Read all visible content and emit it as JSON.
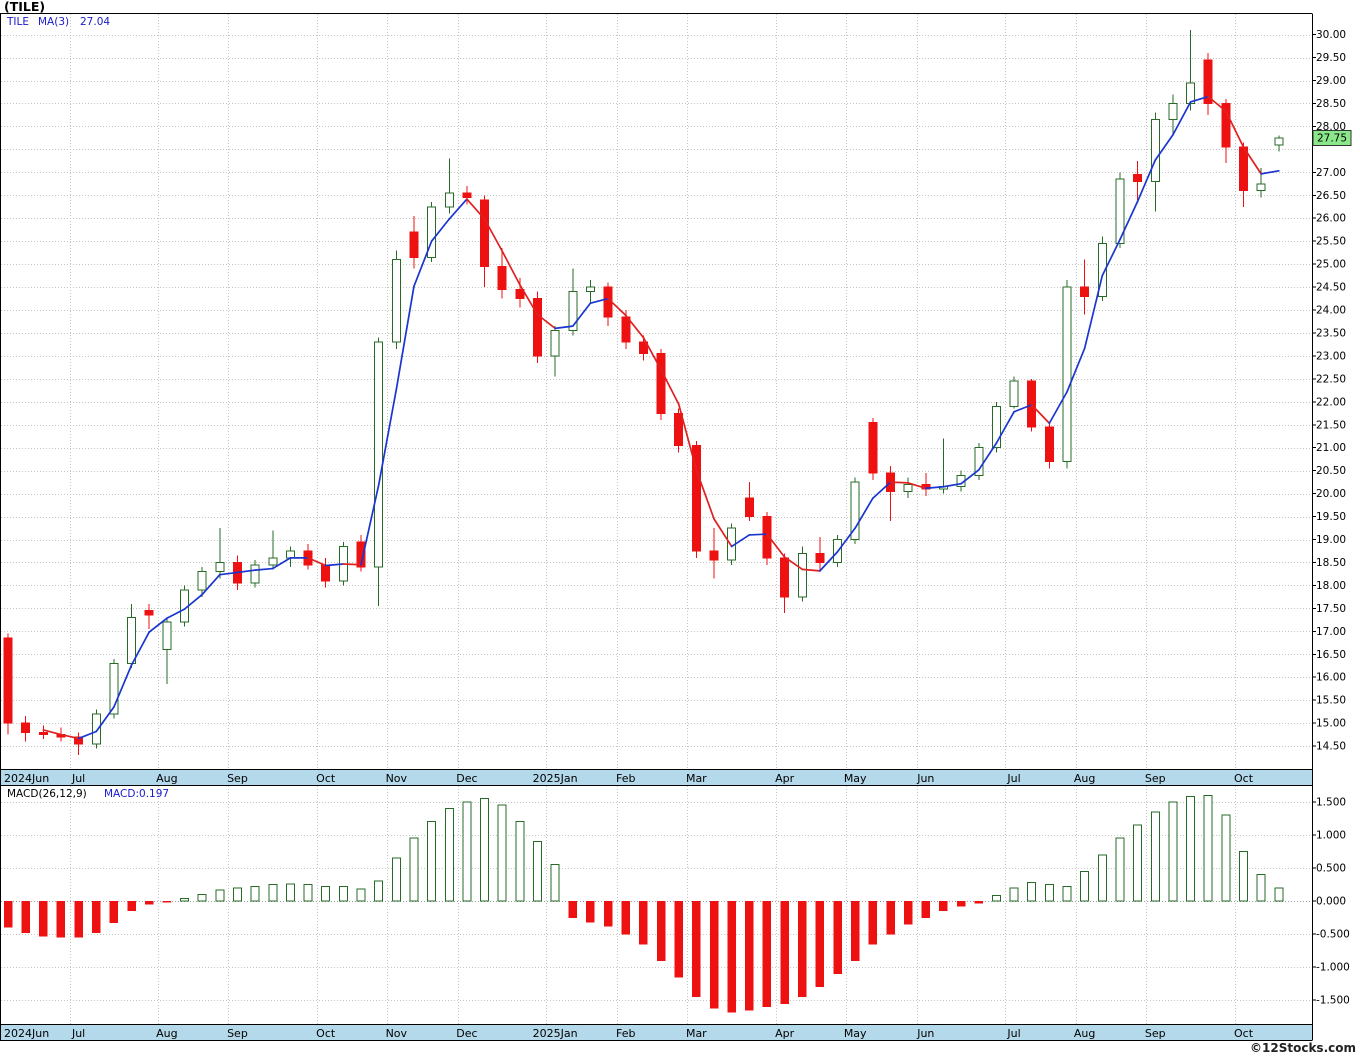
{
  "title": "(TILE)",
  "price_panel": {
    "legend_symbol": "TILE",
    "legend_ma_label": "MA(3)",
    "legend_ma_value": "27.04",
    "last_price_tag": "27.75",
    "axis_ticks": [
      "30.00",
      "29.50",
      "29.00",
      "28.50",
      "28.00",
      "27.00",
      "26.50",
      "26.00",
      "25.50",
      "25.00",
      "24.50",
      "24.00",
      "23.50",
      "23.00",
      "22.50",
      "22.00",
      "21.50",
      "21.00",
      "20.50",
      "20.00",
      "19.50",
      "19.00",
      "18.50",
      "18.00",
      "17.50",
      "17.00",
      "16.50",
      "16.00",
      "15.50",
      "15.00",
      "14.50"
    ]
  },
  "macd_panel": {
    "legend_label": "MACD(26,12,9)",
    "legend_value": "MACD:0.197",
    "axis_ticks": [
      "1.500",
      "1.000",
      "0.500",
      "0.000",
      "-0.500",
      "-1.000",
      "-1.500"
    ]
  },
  "x_axis": {
    "months": [
      {
        "label": "2024Jun",
        "index": 0
      },
      {
        "label": "Jul",
        "index": 4
      },
      {
        "label": "Aug",
        "index": 9
      },
      {
        "label": "Sep",
        "index": 13
      },
      {
        "label": "Oct",
        "index": 18
      },
      {
        "label": "Nov",
        "index": 22
      },
      {
        "label": "Dec",
        "index": 26
      },
      {
        "label": "2025Jan",
        "index": 31
      },
      {
        "label": "Feb",
        "index": 35
      },
      {
        "label": "Mar",
        "index": 39
      },
      {
        "label": "Apr",
        "index": 44
      },
      {
        "label": "May",
        "index": 48
      },
      {
        "label": "Jun",
        "index": 52
      },
      {
        "label": "Jul",
        "index": 57
      },
      {
        "label": "Aug",
        "index": 61
      },
      {
        "label": "Sep",
        "index": 65
      },
      {
        "label": "Oct",
        "index": 70
      }
    ]
  },
  "footer": "©12Stocks.com",
  "colors": {
    "up": "#276b27",
    "down": "#ee1111",
    "up_fill": "#ffffff",
    "ma_rising": "#1a35d0",
    "ma_falling": "#e02020",
    "grid": "#c4c4c4",
    "band": "#b4d9ea",
    "tag_bg": "#8ae88a",
    "frame": "#000000"
  },
  "chart_data": [
    {
      "type": "candlestick",
      "symbol": "TILE",
      "interval": "weekly",
      "ma_period": 3,
      "ma_last": 27.04,
      "last_close": 27.75,
      "ylim": [
        14.0,
        30.45
      ],
      "candles": [
        {
          "d": "2024-06-03",
          "o": 16.85,
          "h": 16.95,
          "l": 14.75,
          "c": 15.0
        },
        {
          "d": "2024-06-10",
          "o": 15.0,
          "h": 15.15,
          "l": 14.6,
          "c": 14.8
        },
        {
          "d": "2024-06-17",
          "o": 14.8,
          "h": 14.95,
          "l": 14.65,
          "c": 14.75
        },
        {
          "d": "2024-06-24",
          "o": 14.75,
          "h": 14.9,
          "l": 14.6,
          "c": 14.7
        },
        {
          "d": "2024-07-01",
          "o": 14.7,
          "h": 14.8,
          "l": 14.3,
          "c": 14.55
        },
        {
          "d": "2024-07-08",
          "o": 14.55,
          "h": 15.3,
          "l": 14.45,
          "c": 15.2
        },
        {
          "d": "2024-07-15",
          "o": 15.2,
          "h": 16.4,
          "l": 15.1,
          "c": 16.3
        },
        {
          "d": "2024-07-22",
          "o": 16.3,
          "h": 17.6,
          "l": 16.2,
          "c": 17.3
        },
        {
          "d": "2024-07-29",
          "o": 17.45,
          "h": 17.6,
          "l": 17.05,
          "c": 17.35
        },
        {
          "d": "2024-08-05",
          "o": 16.6,
          "h": 17.3,
          "l": 15.85,
          "c": 17.2
        },
        {
          "d": "2024-08-12",
          "o": 17.2,
          "h": 18.0,
          "l": 17.1,
          "c": 17.9
        },
        {
          "d": "2024-08-19",
          "o": 17.9,
          "h": 18.4,
          "l": 17.75,
          "c": 18.3
        },
        {
          "d": "2024-08-26",
          "o": 18.3,
          "h": 19.25,
          "l": 18.15,
          "c": 18.5
        },
        {
          "d": "2024-09-02",
          "o": 18.5,
          "h": 18.65,
          "l": 17.9,
          "c": 18.05
        },
        {
          "d": "2024-09-09",
          "o": 18.05,
          "h": 18.55,
          "l": 17.95,
          "c": 18.45
        },
        {
          "d": "2024-09-16",
          "o": 18.45,
          "h": 19.2,
          "l": 18.35,
          "c": 18.6
        },
        {
          "d": "2024-09-23",
          "o": 18.6,
          "h": 18.85,
          "l": 18.4,
          "c": 18.75
        },
        {
          "d": "2024-09-30",
          "o": 18.75,
          "h": 18.9,
          "l": 18.35,
          "c": 18.45
        },
        {
          "d": "2024-10-07",
          "o": 18.45,
          "h": 18.6,
          "l": 17.95,
          "c": 18.1
        },
        {
          "d": "2024-10-14",
          "o": 18.1,
          "h": 18.95,
          "l": 18.0,
          "c": 18.85
        },
        {
          "d": "2024-10-21",
          "o": 18.95,
          "h": 19.1,
          "l": 18.3,
          "c": 18.4
        },
        {
          "d": "2024-10-28",
          "o": 18.4,
          "h": 23.4,
          "l": 17.55,
          "c": 23.3
        },
        {
          "d": "2024-11-04",
          "o": 23.3,
          "h": 25.3,
          "l": 23.15,
          "c": 25.1
        },
        {
          "d": "2024-11-11",
          "o": 25.7,
          "h": 26.05,
          "l": 24.9,
          "c": 25.15
        },
        {
          "d": "2024-11-18",
          "o": 25.15,
          "h": 26.35,
          "l": 25.05,
          "c": 26.25
        },
        {
          "d": "2024-11-25",
          "o": 26.25,
          "h": 27.3,
          "l": 26.1,
          "c": 26.55
        },
        {
          "d": "2024-12-02",
          "o": 26.55,
          "h": 26.7,
          "l": 26.3,
          "c": 26.45
        },
        {
          "d": "2024-12-09",
          "o": 26.4,
          "h": 26.5,
          "l": 24.5,
          "c": 24.95
        },
        {
          "d": "2024-12-16",
          "o": 24.95,
          "h": 25.35,
          "l": 24.25,
          "c": 24.45
        },
        {
          "d": "2024-12-23",
          "o": 24.45,
          "h": 24.7,
          "l": 24.05,
          "c": 24.25
        },
        {
          "d": "2024-12-30",
          "o": 24.25,
          "h": 24.4,
          "l": 22.85,
          "c": 23.0
        },
        {
          "d": "2025-01-06",
          "o": 23.0,
          "h": 23.65,
          "l": 22.55,
          "c": 23.55
        },
        {
          "d": "2025-01-13",
          "o": 23.55,
          "h": 24.9,
          "l": 23.45,
          "c": 24.4
        },
        {
          "d": "2025-01-20",
          "o": 24.4,
          "h": 24.65,
          "l": 24.15,
          "c": 24.5
        },
        {
          "d": "2025-01-27",
          "o": 24.5,
          "h": 24.6,
          "l": 23.65,
          "c": 23.85
        },
        {
          "d": "2025-02-03",
          "o": 23.85,
          "h": 24.0,
          "l": 23.15,
          "c": 23.3
        },
        {
          "d": "2025-02-10",
          "o": 23.3,
          "h": 23.45,
          "l": 22.9,
          "c": 23.05
        },
        {
          "d": "2025-02-17",
          "o": 23.05,
          "h": 23.15,
          "l": 21.6,
          "c": 21.75
        },
        {
          "d": "2025-02-24",
          "o": 21.75,
          "h": 21.85,
          "l": 20.9,
          "c": 21.05
        },
        {
          "d": "2025-03-03",
          "o": 21.05,
          "h": 21.15,
          "l": 18.6,
          "c": 18.75
        },
        {
          "d": "2025-03-10",
          "o": 18.75,
          "h": 19.25,
          "l": 18.15,
          "c": 18.55
        },
        {
          "d": "2025-03-17",
          "o": 18.55,
          "h": 19.35,
          "l": 18.45,
          "c": 19.25
        },
        {
          "d": "2025-03-24",
          "o": 19.9,
          "h": 20.25,
          "l": 19.4,
          "c": 19.5
        },
        {
          "d": "2025-03-31",
          "o": 19.5,
          "h": 19.6,
          "l": 18.45,
          "c": 18.6
        },
        {
          "d": "2025-04-07",
          "o": 18.6,
          "h": 18.7,
          "l": 17.4,
          "c": 17.75
        },
        {
          "d": "2025-04-14",
          "o": 17.75,
          "h": 18.85,
          "l": 17.65,
          "c": 18.7
        },
        {
          "d": "2025-04-21",
          "o": 18.7,
          "h": 19.05,
          "l": 18.3,
          "c": 18.5
        },
        {
          "d": "2025-04-28",
          "o": 18.5,
          "h": 19.1,
          "l": 18.4,
          "c": 19.0
        },
        {
          "d": "2025-05-05",
          "o": 19.0,
          "h": 20.35,
          "l": 18.9,
          "c": 20.25
        },
        {
          "d": "2025-05-12",
          "o": 21.55,
          "h": 21.65,
          "l": 20.3,
          "c": 20.45
        },
        {
          "d": "2025-05-19",
          "o": 20.45,
          "h": 20.6,
          "l": 19.4,
          "c": 20.05
        },
        {
          "d": "2025-05-26",
          "o": 20.05,
          "h": 20.35,
          "l": 19.9,
          "c": 20.2
        },
        {
          "d": "2025-06-02",
          "o": 20.2,
          "h": 20.45,
          "l": 19.95,
          "c": 20.1
        },
        {
          "d": "2025-06-09",
          "o": 20.1,
          "h": 21.2,
          "l": 20.0,
          "c": 20.15
        },
        {
          "d": "2025-06-16",
          "o": 20.15,
          "h": 20.5,
          "l": 20.05,
          "c": 20.4
        },
        {
          "d": "2025-06-23",
          "o": 20.4,
          "h": 21.1,
          "l": 20.3,
          "c": 21.0
        },
        {
          "d": "2025-06-30",
          "o": 21.0,
          "h": 22.0,
          "l": 20.9,
          "c": 21.9
        },
        {
          "d": "2025-07-07",
          "o": 21.9,
          "h": 22.55,
          "l": 21.85,
          "c": 22.45
        },
        {
          "d": "2025-07-14",
          "o": 22.45,
          "h": 22.5,
          "l": 21.35,
          "c": 21.45
        },
        {
          "d": "2025-07-21",
          "o": 21.45,
          "h": 21.55,
          "l": 20.55,
          "c": 20.7
        },
        {
          "d": "2025-07-28",
          "o": 20.7,
          "h": 24.65,
          "l": 20.55,
          "c": 24.5
        },
        {
          "d": "2025-08-04",
          "o": 24.5,
          "h": 25.1,
          "l": 23.9,
          "c": 24.3
        },
        {
          "d": "2025-08-11",
          "o": 24.3,
          "h": 25.6,
          "l": 24.2,
          "c": 25.45
        },
        {
          "d": "2025-08-18",
          "o": 25.45,
          "h": 27.0,
          "l": 25.35,
          "c": 26.85
        },
        {
          "d": "2025-08-25",
          "o": 26.95,
          "h": 27.25,
          "l": 26.4,
          "c": 26.8
        },
        {
          "d": "2025-09-01",
          "o": 26.8,
          "h": 28.3,
          "l": 26.15,
          "c": 28.15
        },
        {
          "d": "2025-09-08",
          "o": 28.15,
          "h": 28.7,
          "l": 27.85,
          "c": 28.5
        },
        {
          "d": "2025-09-15",
          "o": 28.5,
          "h": 30.1,
          "l": 28.35,
          "c": 28.95
        },
        {
          "d": "2025-09-22",
          "o": 29.45,
          "h": 29.6,
          "l": 28.25,
          "c": 28.5
        },
        {
          "d": "2025-09-29",
          "o": 28.5,
          "h": 28.6,
          "l": 27.2,
          "c": 27.55
        },
        {
          "d": "2025-10-06",
          "o": 27.55,
          "h": 27.65,
          "l": 26.25,
          "c": 26.6
        },
        {
          "d": "2025-10-13",
          "o": 26.6,
          "h": 27.1,
          "l": 26.45,
          "c": 26.75
        },
        {
          "d": "2025-10-20",
          "o": 27.6,
          "h": 27.8,
          "l": 27.45,
          "c": 27.75
        }
      ]
    },
    {
      "type": "bar",
      "name": "MACD histogram",
      "params": "26,12,9",
      "last": 0.197,
      "ylim": [
        -1.86,
        1.74
      ],
      "values": [
        -0.4,
        -0.48,
        -0.53,
        -0.55,
        -0.55,
        -0.48,
        -0.33,
        -0.15,
        -0.05,
        -0.02,
        0.04,
        0.1,
        0.17,
        0.2,
        0.22,
        0.25,
        0.26,
        0.25,
        0.22,
        0.22,
        0.18,
        0.3,
        0.65,
        0.95,
        1.2,
        1.4,
        1.5,
        1.55,
        1.45,
        1.2,
        0.9,
        0.55,
        -0.25,
        -0.32,
        -0.38,
        -0.5,
        -0.65,
        -0.9,
        -1.15,
        -1.45,
        -1.62,
        -1.68,
        -1.65,
        -1.6,
        -1.55,
        -1.45,
        -1.3,
        -1.1,
        -0.9,
        -0.65,
        -0.5,
        -0.35,
        -0.25,
        -0.15,
        -0.08,
        -0.03,
        0.08,
        0.2,
        0.28,
        0.25,
        0.22,
        0.45,
        0.7,
        0.95,
        1.15,
        1.35,
        1.5,
        1.58,
        1.6,
        1.3,
        0.75,
        0.4,
        0.197
      ]
    }
  ]
}
